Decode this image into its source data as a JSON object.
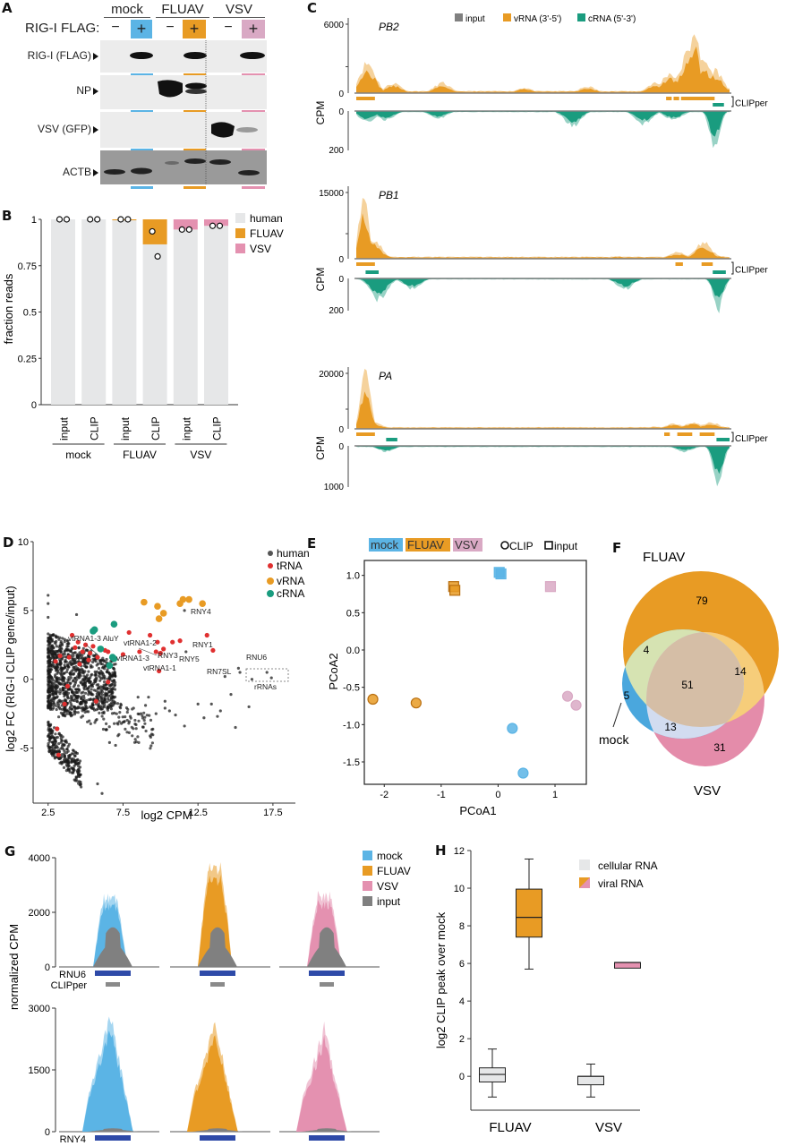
{
  "colors": {
    "mock": "#5bb4e5",
    "fluav": "#e89b24",
    "vsv": "#e491b0",
    "vsv_legend_e": "#d9a9c4",
    "human": "#e6e7e8",
    "input": "#808080",
    "vrna": "#e89b24",
    "crna": "#1a9c7f",
    "trna": "#e03030",
    "human_dot": "#333333",
    "gene_bar": "#2e4aa8",
    "clipper_bar": "#8a8a8a",
    "venn_mock": "#4aa7dd",
    "venn_fluav": "#e89b24",
    "venn_vsv": "#e48caa"
  },
  "panels": {
    "A": "A",
    "B": "B",
    "C": "C",
    "D": "D",
    "E": "E",
    "F": "F",
    "G": "G",
    "H": "H"
  },
  "panelA": {
    "conditions": [
      "mock",
      "FLUAV",
      "VSV"
    ],
    "row_header": "RIG-I FLAG:",
    "lanes": [
      "−",
      "+",
      "−",
      "+",
      "−",
      "+"
    ],
    "blots": [
      "RIG-I (FLAG)",
      "NP",
      "VSV (GFP)",
      "ACTB"
    ]
  },
  "chart_data": [
    {
      "id": "B",
      "type": "bar",
      "title": "",
      "ylabel": "fraction reads",
      "xlabel": "",
      "ylim": [
        0,
        1
      ],
      "yticks": [
        "0",
        "0.25",
        "0.5",
        "0.75",
        "1"
      ],
      "categories": [
        "input",
        "CLIP",
        "input",
        "CLIP",
        "input",
        "CLIP"
      ],
      "groups": [
        "mock",
        "FLUAV",
        "VSV"
      ],
      "legend": [
        "human",
        "FLUAV",
        "VSV"
      ],
      "series": [
        {
          "name": "human",
          "values": [
            1.0,
            1.0,
            0.995,
            0.865,
            0.945,
            0.965
          ]
        },
        {
          "name": "FLUAV",
          "values": [
            0,
            0,
            0.005,
            0.135,
            0,
            0
          ]
        },
        {
          "name": "VSV",
          "values": [
            0,
            0,
            0,
            0,
            0.055,
            0.035
          ]
        }
      ],
      "replicate_points": [
        [
          1.0,
          1.0
        ],
        [
          1.0,
          1.0
        ],
        [
          1.0,
          1.0
        ],
        [
          0.935,
          0.8
        ],
        [
          0.945,
          0.945
        ],
        [
          0.965,
          0.965
        ]
      ]
    },
    {
      "id": "C",
      "type": "area",
      "legend": [
        "input",
        "vRNA (3'-5')",
        "cRNA (5'-3')"
      ],
      "ylabel": "CPM",
      "clipper_label": "CLIPper",
      "tracks": [
        {
          "segment": "PB2",
          "vrna_max": 6000,
          "crna_max": 200,
          "vrna_ticks": [
            "6000",
            "0"
          ],
          "crna_ticks": [
            "0",
            "200"
          ]
        },
        {
          "segment": "PB1",
          "vrna_max": 15000,
          "crna_max": 200,
          "vrna_ticks": [
            "15000",
            "0"
          ],
          "crna_ticks": [
            "0",
            "200"
          ]
        },
        {
          "segment": "PA",
          "vrna_max": 20000,
          "crna_max": 1000,
          "vrna_ticks": [
            "20000",
            "0"
          ],
          "crna_ticks": [
            "0",
            "1000"
          ]
        }
      ]
    },
    {
      "id": "D",
      "type": "scatter",
      "xlabel": "log2 CPM",
      "ylabel": "log2 FC (RIG-I CLIP gene/input)",
      "xlim": [
        1.5,
        19
      ],
      "ylim": [
        -9,
        10
      ],
      "xticks": [
        "2.5",
        "7.5",
        "12.5",
        "17.5"
      ],
      "yticks": [
        "-5",
        "0",
        "5",
        "10"
      ],
      "legend": [
        "human",
        "tRNA",
        "vRNA",
        "cRNA"
      ],
      "vrna_points": [
        [
          8.9,
          5.6
        ],
        [
          9.8,
          5.3
        ],
        [
          10.2,
          4.8
        ],
        [
          9.9,
          4.4
        ],
        [
          11.3,
          5.5
        ],
        [
          11.5,
          5.8
        ],
        [
          11.9,
          5.8
        ],
        [
          12.8,
          5.5
        ]
      ],
      "crna_points": [
        [
          5.5,
          3.5
        ],
        [
          5.6,
          3.6
        ],
        [
          6.9,
          4.0
        ],
        [
          6.0,
          2.2
        ],
        [
          6.8,
          1.6
        ],
        [
          6.6,
          1.0
        ],
        [
          6.9,
          1.5
        ]
      ],
      "trna_points": [
        [
          4.1,
          3.2
        ],
        [
          4.5,
          2.7
        ],
        [
          5.0,
          2.5
        ],
        [
          5.5,
          2.4
        ],
        [
          4.3,
          2.3
        ],
        [
          4.8,
          2.0
        ],
        [
          5.3,
          1.9
        ],
        [
          5.8,
          1.6
        ],
        [
          6.3,
          2.1
        ],
        [
          6.5,
          2.0
        ],
        [
          7.5,
          1.8
        ],
        [
          7.9,
          3.4
        ],
        [
          8.6,
          2.0
        ],
        [
          9.3,
          3.2
        ],
        [
          9.8,
          2.7
        ],
        [
          9.7,
          2.0
        ],
        [
          10.2,
          2.2
        ],
        [
          10.0,
          1.9
        ],
        [
          10.8,
          2.7
        ],
        [
          11.3,
          2.8
        ],
        [
          13.1,
          3.2
        ],
        [
          13.5,
          2.1
        ],
        [
          3.3,
          1.7
        ],
        [
          3.0,
          1.3
        ],
        [
          4.6,
          1.1
        ],
        [
          3.8,
          -0.5
        ],
        [
          3.6,
          -1.8
        ],
        [
          5.7,
          -1.6
        ],
        [
          6.5,
          -0.2
        ],
        [
          9.9,
          0.6
        ],
        [
          3.1,
          -3.6
        ],
        [
          3.2,
          -5.5
        ],
        [
          3.9,
          1.6
        ],
        [
          5.2,
          1.4
        ]
      ],
      "human_outliers": [
        [
          2.5,
          6.1
        ],
        [
          2.5,
          5.5
        ],
        [
          2.5,
          4.5
        ],
        [
          4.4,
          4.7
        ],
        [
          11.6,
          5.0
        ],
        [
          11.7,
          2.0
        ],
        [
          14.3,
          0.2
        ],
        [
          15.2,
          0.8
        ],
        [
          15.3,
          0.5
        ],
        [
          16.1,
          0.0
        ],
        [
          17.1,
          0.5
        ],
        [
          17.4,
          0.1
        ],
        [
          14.7,
          -1.1
        ],
        [
          15.9,
          -2.0
        ],
        [
          15.0,
          -3.5
        ],
        [
          13.4,
          -1.8
        ],
        [
          12.5,
          -1.8
        ],
        [
          14.0,
          -2.3
        ],
        [
          13.8,
          -2.7
        ],
        [
          11.6,
          -3.4
        ],
        [
          12.9,
          -2.8
        ],
        [
          9.7,
          -2.5
        ],
        [
          10.6,
          -2.3
        ],
        [
          10.3,
          -2.1
        ],
        [
          8.2,
          -2.1
        ],
        [
          8.7,
          -2.5
        ],
        [
          10.3,
          -1.6
        ],
        [
          11.0,
          -2.6
        ],
        [
          9.0,
          -1.9
        ],
        [
          8.5,
          -1.3
        ],
        [
          9.2,
          -1.3
        ],
        [
          6.6,
          -4.6
        ],
        [
          7.0,
          -4.8
        ],
        [
          5.8,
          -7.6
        ],
        [
          6.1,
          -8.3
        ]
      ],
      "annotations": [
        "vtRNA1-3 AluY",
        "vtRNA1-2",
        "vtRNA1-3",
        "vtRNA1-1",
        "RNY3",
        "RNY5",
        "RNY4",
        "RNY1",
        "RNU6",
        "RN7SL",
        "rRNAs"
      ]
    },
    {
      "id": "E",
      "type": "scatter",
      "xlabel": "PCoA1",
      "ylabel": "PCoA2",
      "xlim": [
        -2.35,
        1.55
      ],
      "ylim": [
        -1.8,
        1.2
      ],
      "xticks": [
        "-2",
        "-1",
        "0",
        "1"
      ],
      "yticks": [
        "1.0",
        "0.5",
        "0.0",
        "-0.5",
        "-1.0",
        "-1.5"
      ],
      "legend_conditions": [
        "mock",
        "FLUAV",
        "VSV"
      ],
      "legend_shapes": [
        "CLIP",
        "input"
      ],
      "points": [
        {
          "condition": "mock",
          "type": "input",
          "x": 0.02,
          "y": 1.04
        },
        {
          "condition": "mock",
          "type": "input",
          "x": 0.05,
          "y": 1.02
        },
        {
          "condition": "mock",
          "type": "CLIP",
          "x": 0.25,
          "y": -1.05
        },
        {
          "condition": "mock",
          "type": "CLIP",
          "x": 0.44,
          "y": -1.65
        },
        {
          "condition": "FLUAV",
          "type": "input",
          "x": -0.78,
          "y": 0.85
        },
        {
          "condition": "FLUAV",
          "type": "input",
          "x": -0.76,
          "y": 0.8
        },
        {
          "condition": "FLUAV",
          "type": "CLIP",
          "x": -2.2,
          "y": -0.66
        },
        {
          "condition": "FLUAV",
          "type": "CLIP",
          "x": -1.44,
          "y": -0.71
        },
        {
          "condition": "VSV",
          "type": "input",
          "x": 0.92,
          "y": 0.85
        },
        {
          "condition": "VSV",
          "type": "CLIP",
          "x": 1.22,
          "y": -0.62
        },
        {
          "condition": "VSV",
          "type": "CLIP",
          "x": 1.37,
          "y": -0.74
        }
      ]
    },
    {
      "id": "F",
      "type": "venn",
      "sets": [
        "FLUAV",
        "VSV",
        "mock"
      ],
      "regions": {
        "FLUAV_only": 79,
        "VSV_only": 31,
        "mock_only": 5,
        "FLUAV_mock": 4,
        "FLUAV_VSV": 14,
        "VSV_mock": 13,
        "all": 51
      }
    },
    {
      "id": "G",
      "type": "area",
      "ylabel": "normalized CPM",
      "legend": [
        "mock",
        "FLUAV",
        "VSV",
        "input"
      ],
      "rows": [
        {
          "gene": "RNU6",
          "yticks": [
            "4000",
            "2000",
            "0"
          ],
          "ymax": 4000,
          "peaks": {
            "mock": 2700,
            "FLUAV": 3850,
            "VSV": 2800
          },
          "input_peak": 1450
        },
        {
          "gene": "RNY4",
          "yticks": [
            "3000",
            "1500",
            "0"
          ],
          "ymax": 3000,
          "peaks": {
            "mock": 3050,
            "FLUAV": 2850,
            "VSV": 2700
          },
          "input_peak": 80
        }
      ],
      "clipper_label": "CLIPper"
    },
    {
      "id": "H",
      "type": "box",
      "ylabel": "log2 CLIP peak over mock",
      "categories": [
        "FLUAV",
        "VSV"
      ],
      "ylim": [
        -1.8,
        12
      ],
      "yticks": [
        "0",
        "2",
        "4",
        "6",
        "8",
        "10",
        "12"
      ],
      "legend": [
        "cellular RNA",
        "viral RNA"
      ],
      "boxes": [
        {
          "category": "FLUAV",
          "kind": "cellular RNA",
          "min": -1.1,
          "q1": -0.3,
          "median": 0.1,
          "q3": 0.45,
          "max": 1.45
        },
        {
          "category": "FLUAV",
          "kind": "viral RNA",
          "min": 5.7,
          "q1": 7.4,
          "median": 8.45,
          "q3": 9.95,
          "max": 11.55
        },
        {
          "category": "VSV",
          "kind": "cellular RNA",
          "min": -1.1,
          "q1": -0.45,
          "median": 0.0,
          "q3": 0.0,
          "max": 0.65
        },
        {
          "category": "VSV",
          "kind": "viral RNA",
          "min": 5.75,
          "q1": 5.75,
          "median": 6.05,
          "q3": 6.05,
          "max": 6.05
        }
      ]
    }
  ]
}
